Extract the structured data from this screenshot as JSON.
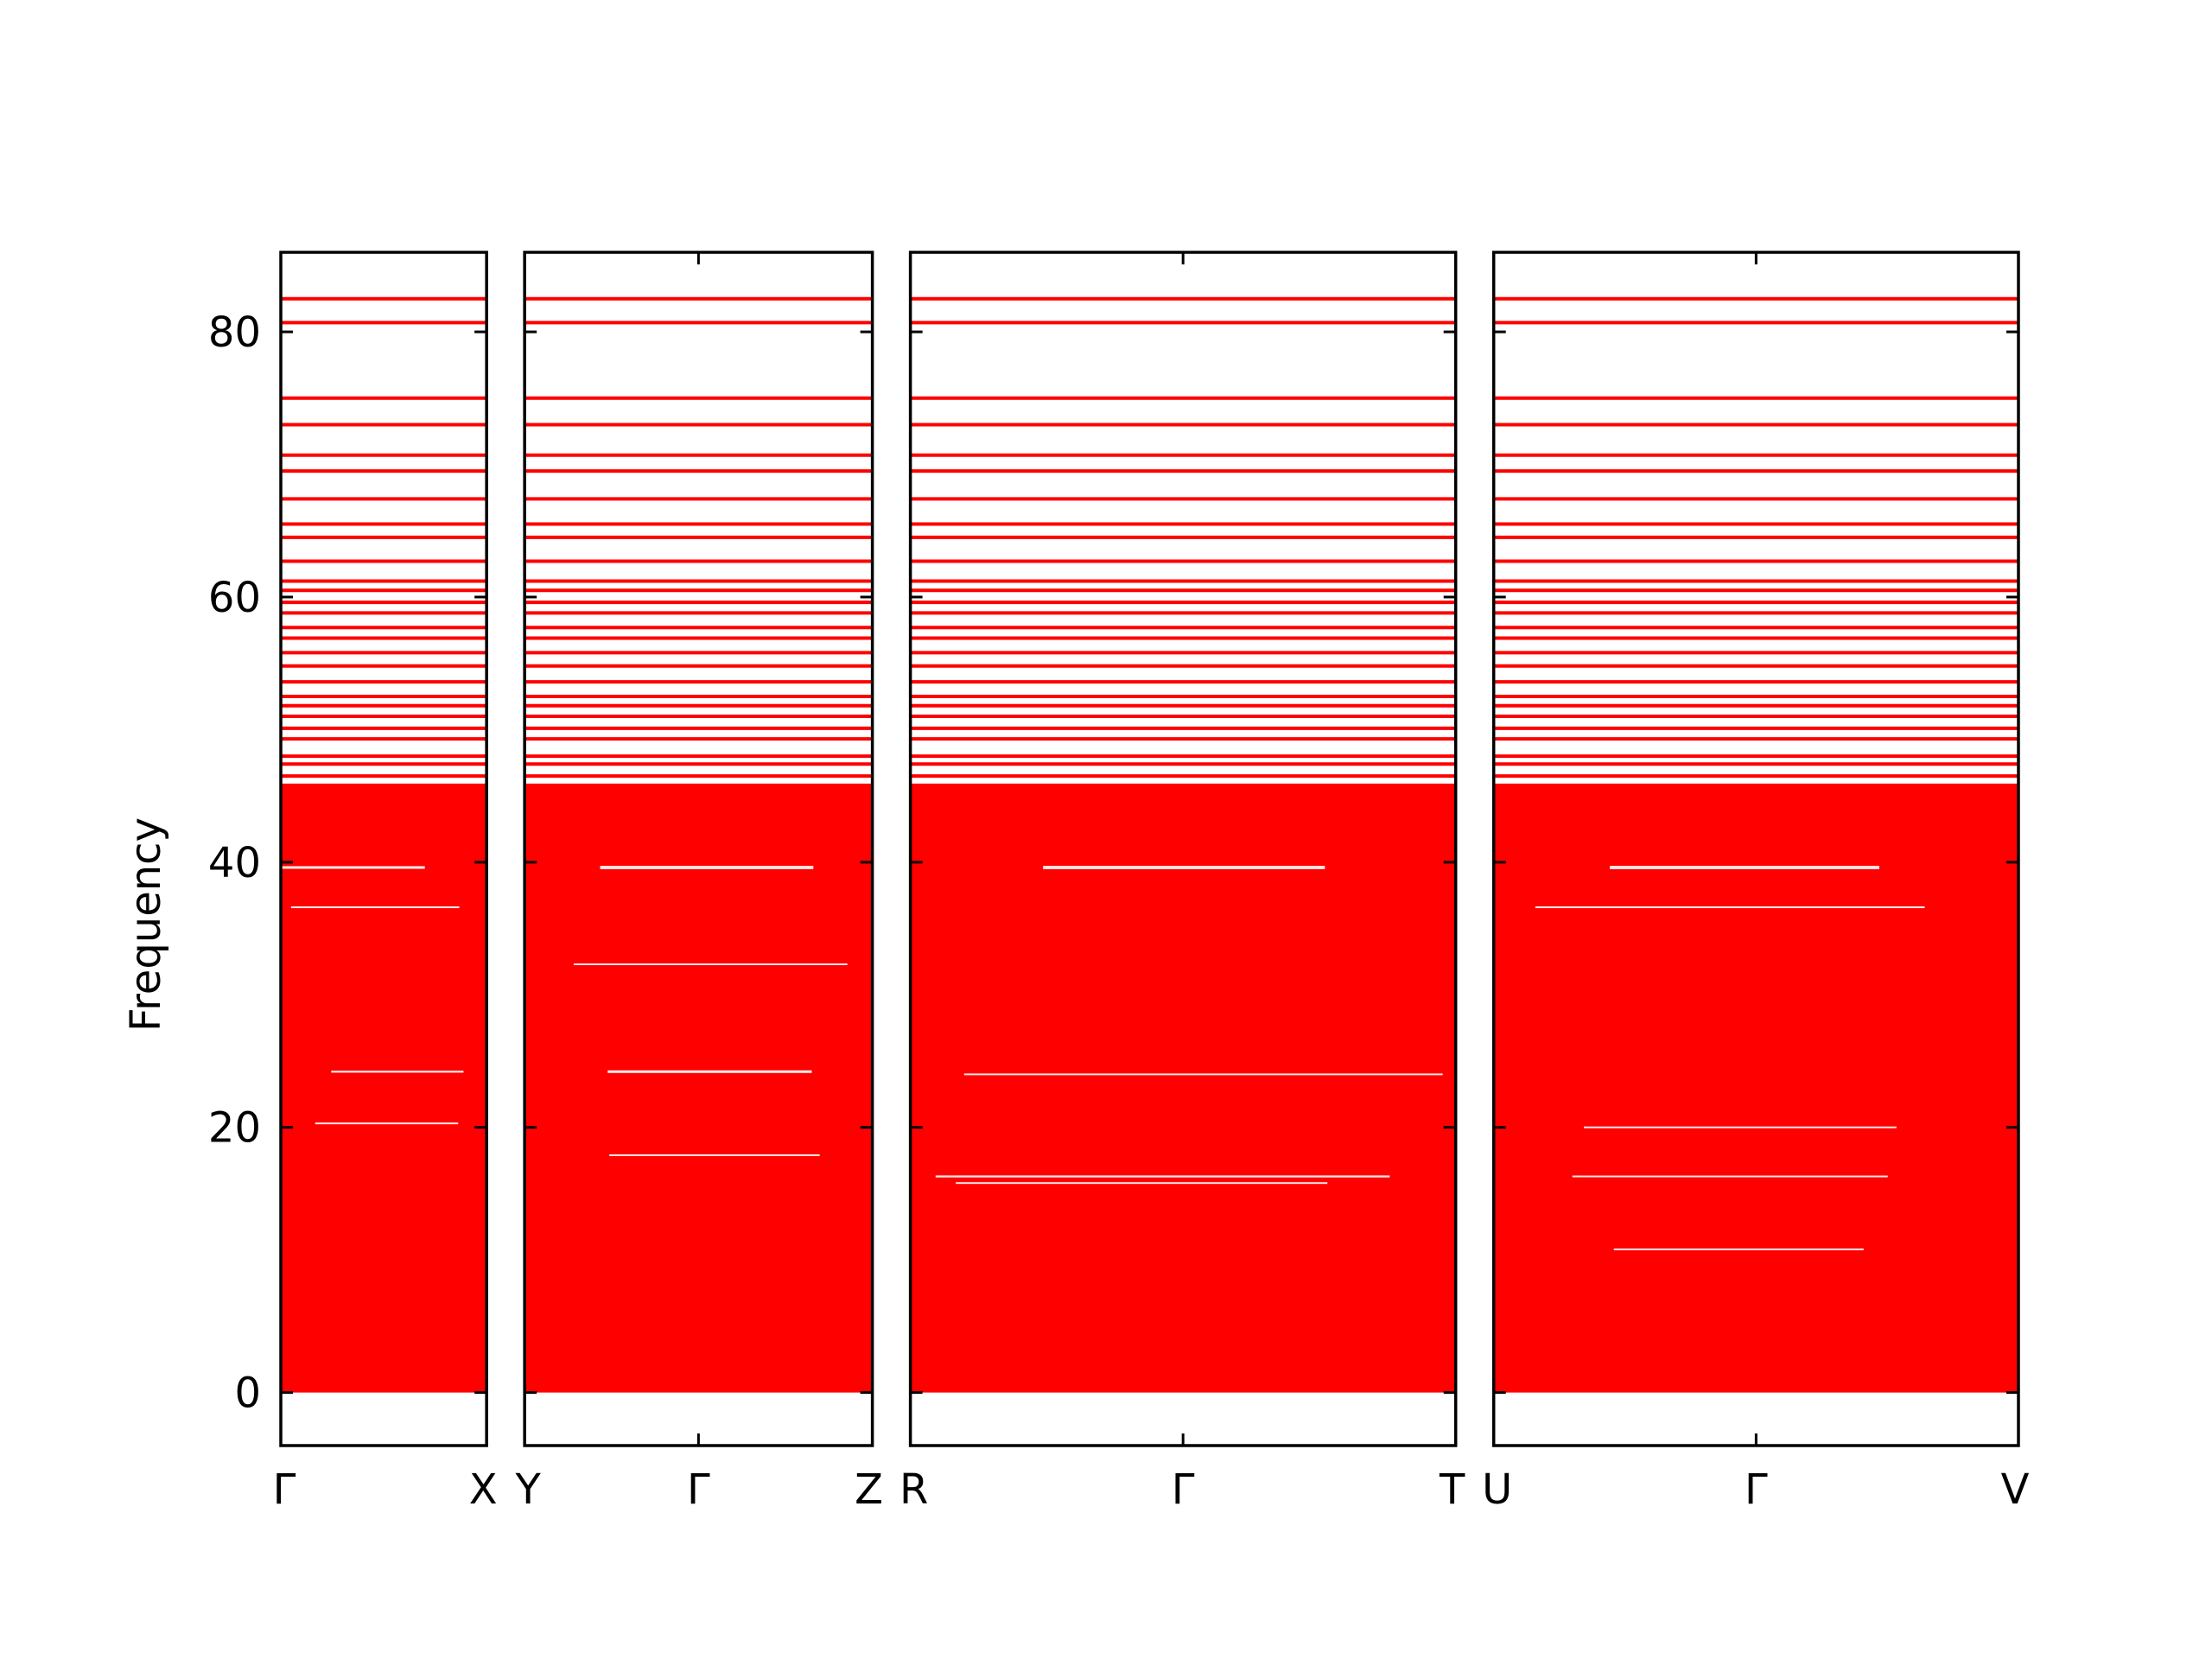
{
  "chart_data": {
    "type": "line",
    "ylabel": "Frequency",
    "ylim": [
      -4,
      86
    ],
    "yticks": [
      0,
      20,
      40,
      60,
      80
    ],
    "line_color": "#ff0000",
    "grid": false,
    "panels": [
      {
        "start_label": "Γ",
        "end_label": "X",
        "mid_label": "",
        "length": 1.0
      },
      {
        "start_label": "Y",
        "end_label": "Z",
        "mid_label": "Γ",
        "length": 1.69
      },
      {
        "start_label": "R",
        "end_label": "T",
        "mid_label": "Γ",
        "length": 2.65
      },
      {
        "start_label": "U",
        "end_label": "V",
        "mid_label": "Γ",
        "length": 2.55
      }
    ],
    "flat_bands": [
      82.5,
      80.7,
      75.0,
      73.0,
      70.7,
      69.5,
      67.4,
      65.5,
      64.5,
      62.7,
      61.2,
      60.5,
      59.6,
      58.8,
      57.7,
      56.9,
      55.8,
      54.8,
      53.6,
      52.5,
      51.8,
      51.0,
      50.1,
      49.3,
      48.0,
      47.4,
      46.5,
      45.8
    ],
    "dense_band_range": [
      0,
      45.8
    ],
    "gaps": [
      {
        "panel": 0,
        "y": 39.6,
        "width": 0.8
      },
      {
        "panel": 0,
        "y": 36.6,
        "width": 0.5
      },
      {
        "panel": 0,
        "y": 24.2,
        "width": 0.6
      },
      {
        "panel": 0,
        "y": 20.3,
        "width": 0.2
      },
      {
        "panel": 1,
        "y": 39.6,
        "width": 1.0
      },
      {
        "panel": 1,
        "y": 32.3,
        "width": 0.5
      },
      {
        "panel": 1,
        "y": 24.2,
        "width": 0.8
      },
      {
        "panel": 1,
        "y": 17.9,
        "width": 0.5
      },
      {
        "panel": 2,
        "y": 39.6,
        "width": 1.0
      },
      {
        "panel": 2,
        "y": 24.0,
        "width": 0.5
      },
      {
        "panel": 2,
        "y": 16.3,
        "width": 0.6
      },
      {
        "panel": 2,
        "y": 15.8,
        "width": 0.5
      },
      {
        "panel": 3,
        "y": 39.6,
        "width": 1.0
      },
      {
        "panel": 3,
        "y": 36.6,
        "width": 0.4
      },
      {
        "panel": 3,
        "y": 20.0,
        "width": 0.4
      },
      {
        "panel": 3,
        "y": 16.3,
        "width": 0.5
      },
      {
        "panel": 3,
        "y": 10.8,
        "width": 0.5
      }
    ]
  }
}
